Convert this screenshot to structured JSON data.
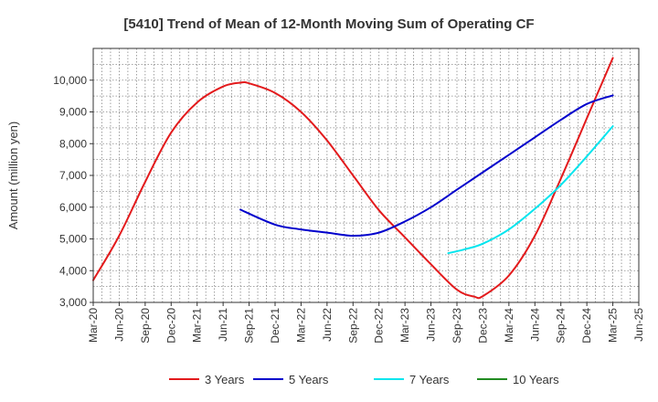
{
  "chart_data": {
    "type": "line",
    "title": "[5410]  Trend of Mean of 12-Month Moving Sum of Operating CF",
    "xlabel": "",
    "ylabel": "Amount (million yen)",
    "ylim": [
      3000,
      11000
    ],
    "yticks": [
      3000,
      4000,
      5000,
      6000,
      7000,
      8000,
      9000,
      10000
    ],
    "ytick_labels": [
      "3,000",
      "4,000",
      "5,000",
      "6,000",
      "7,000",
      "8,000",
      "9,000",
      "10,000"
    ],
    "xticks": [
      "Mar-20",
      "Jun-20",
      "Sep-20",
      "Dec-20",
      "Mar-21",
      "Jun-21",
      "Sep-21",
      "Dec-21",
      "Mar-22",
      "Jun-22",
      "Sep-22",
      "Dec-22",
      "Mar-23",
      "Jun-23",
      "Sep-23",
      "Dec-23",
      "Mar-24",
      "Jun-24",
      "Sep-24",
      "Dec-24",
      "Mar-25",
      "Jun-25"
    ],
    "grid": true,
    "legend_position": "bottom",
    "series": [
      {
        "name": "3 Years",
        "color": "#e31a1c",
        "points": [
          [
            "Mar-20",
            3700
          ],
          [
            "Jun-20",
            5100
          ],
          [
            "Sep-20",
            6800
          ],
          [
            "Dec-20",
            8350
          ],
          [
            "Mar-21",
            9300
          ],
          [
            "Jun-21",
            9800
          ],
          [
            "Aug-21",
            9920
          ],
          [
            "Sep-21",
            9900
          ],
          [
            "Dec-21",
            9600
          ],
          [
            "Mar-22",
            9000
          ],
          [
            "Jun-22",
            8100
          ],
          [
            "Sep-22",
            7000
          ],
          [
            "Dec-22",
            5900
          ],
          [
            "Mar-23",
            5050
          ],
          [
            "Jun-23",
            4200
          ],
          [
            "Sep-23",
            3400
          ],
          [
            "Nov-23",
            3180
          ],
          [
            "Dec-23",
            3200
          ],
          [
            "Mar-24",
            3850
          ],
          [
            "Jun-24",
            5100
          ],
          [
            "Sep-24",
            6900
          ],
          [
            "Dec-24",
            8800
          ],
          [
            "Mar-25",
            10700
          ]
        ]
      },
      {
        "name": "5 Years",
        "color": "#0000cc",
        "points": [
          [
            "Aug-21",
            5920
          ],
          [
            "Dec-21",
            5450
          ],
          [
            "Mar-22",
            5300
          ],
          [
            "Jun-22",
            5200
          ],
          [
            "Sep-22",
            5100
          ],
          [
            "Dec-22",
            5200
          ],
          [
            "Mar-23",
            5550
          ],
          [
            "Jun-23",
            6000
          ],
          [
            "Sep-23",
            6550
          ],
          [
            "Dec-23",
            7100
          ],
          [
            "Mar-24",
            7650
          ],
          [
            "Jun-24",
            8200
          ],
          [
            "Sep-24",
            8750
          ],
          [
            "Dec-24",
            9250
          ],
          [
            "Mar-25",
            9520
          ]
        ]
      },
      {
        "name": "7 Years",
        "color": "#00e5ee",
        "points": [
          [
            "Aug-23",
            4550
          ],
          [
            "Oct-23",
            4680
          ],
          [
            "Dec-23",
            4850
          ],
          [
            "Mar-24",
            5300
          ],
          [
            "Jun-24",
            5950
          ],
          [
            "Sep-24",
            6700
          ],
          [
            "Dec-24",
            7600
          ],
          [
            "Mar-25",
            8550
          ]
        ]
      },
      {
        "name": "10 Years",
        "color": "#228b22",
        "points": []
      }
    ]
  }
}
